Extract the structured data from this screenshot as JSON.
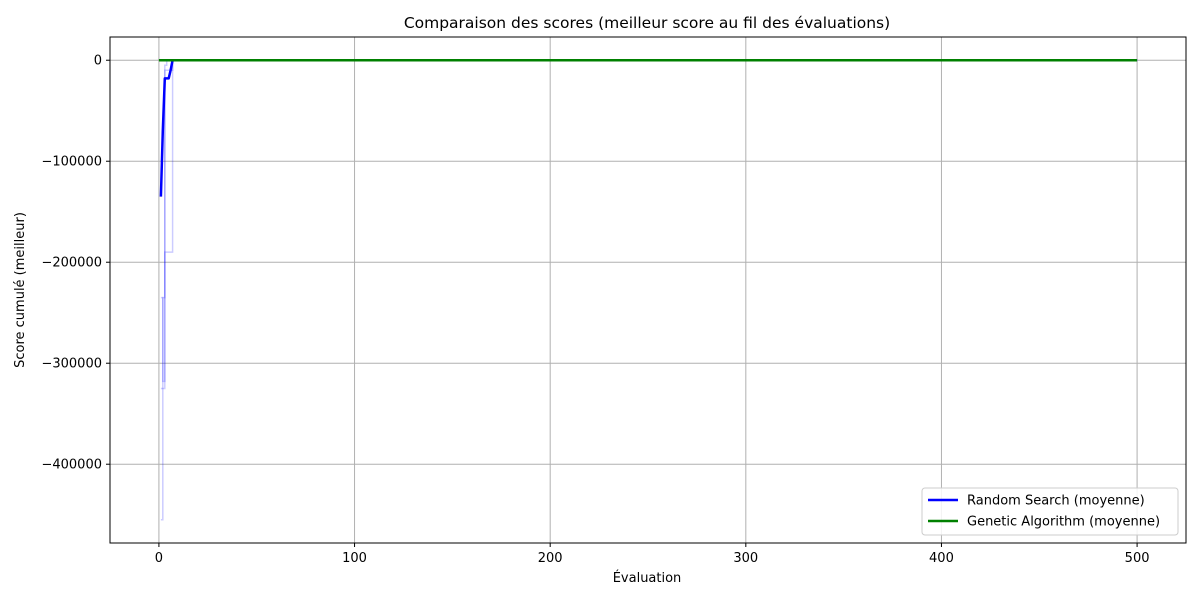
{
  "chart_data": {
    "type": "line",
    "title": "Comparaison des scores (meilleur score au fil des évaluations)",
    "xlabel": "Évaluation",
    "ylabel": "Score cumulé (meilleur)",
    "xlim": [
      -25,
      525
    ],
    "ylim": [
      -478000,
      23000
    ],
    "xticks": [
      0,
      100,
      200,
      300,
      400,
      500
    ],
    "yticks": [
      0,
      -100000,
      -200000,
      -300000,
      -400000
    ],
    "ytick_labels": [
      "0",
      "−100000",
      "−200000",
      "−300000",
      "−400000"
    ],
    "grid": true,
    "legend_position": "lower-right",
    "series": [
      {
        "name": "Random Search (moyenne)",
        "color": "#0000ff",
        "x": [
          1,
          2,
          3,
          4,
          5,
          6,
          7,
          500
        ],
        "values": [
          -135000,
          -70000,
          -18000,
          -18000,
          -18000,
          -10000,
          0,
          0
        ]
      },
      {
        "name": "Genetic Algorithm (moyenne)",
        "color": "#008000",
        "x": [
          0,
          500
        ],
        "values": [
          0,
          0
        ]
      }
    ],
    "individual_runs": {
      "color": "#0000ff",
      "opacity": 0.2,
      "runs": [
        {
          "x": [
            1,
            2,
            3,
            4,
            5,
            6,
            7,
            500
          ],
          "values": [
            -455000,
            -235000,
            -190000,
            -190000,
            -190000,
            -190000,
            0,
            0
          ]
        },
        {
          "x": [
            1,
            2,
            3,
            4,
            5,
            6,
            7,
            500
          ],
          "values": [
            -325000,
            -325000,
            -10000,
            -10000,
            -10000,
            -10000,
            0,
            0
          ]
        },
        {
          "x": [
            1,
            2,
            3,
            4,
            500
          ],
          "values": [
            -235000,
            -318000,
            -5000,
            0,
            0
          ]
        }
      ]
    }
  }
}
